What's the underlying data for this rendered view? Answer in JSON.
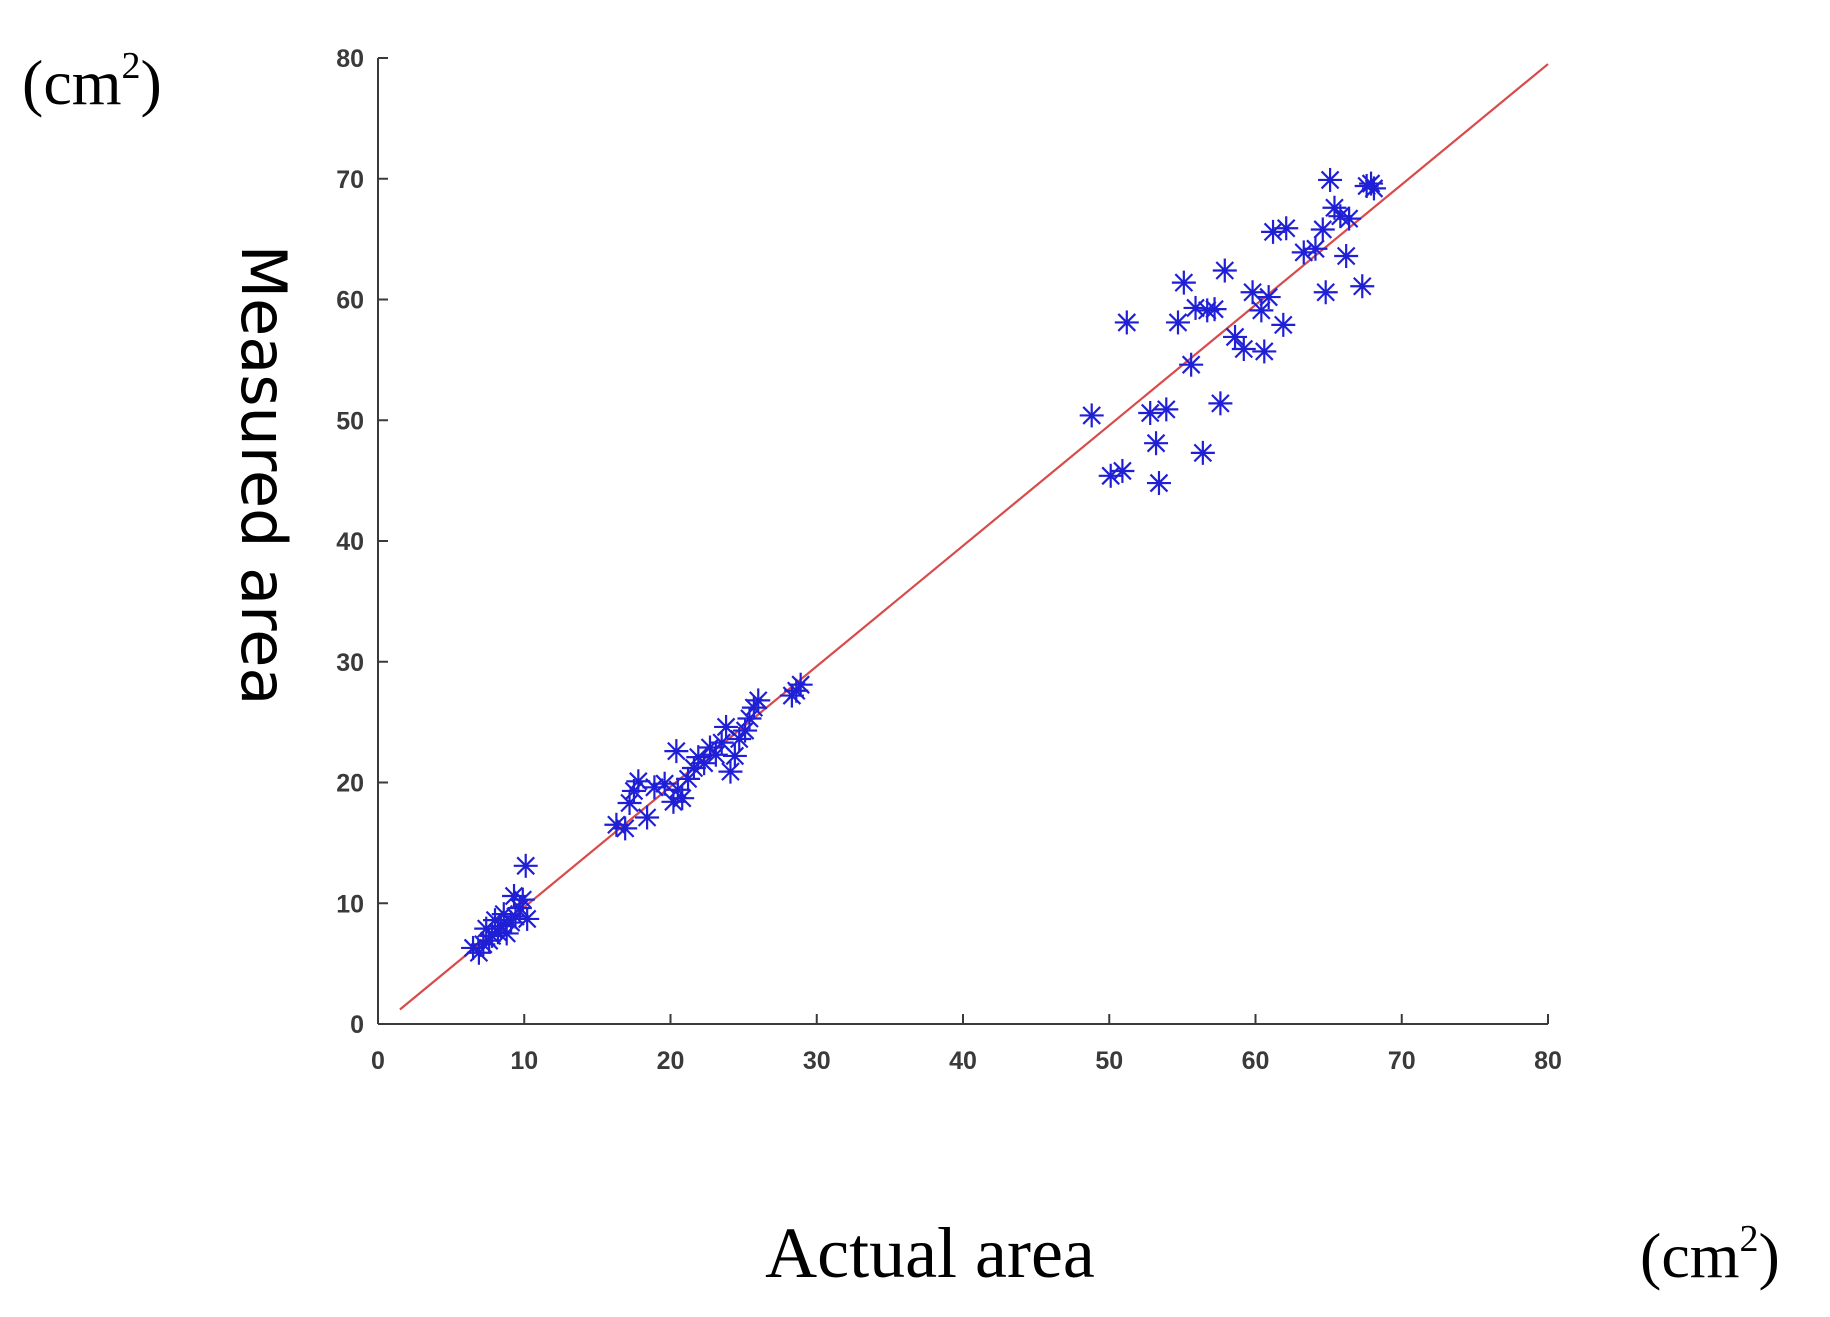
{
  "chart_data": {
    "type": "scatter",
    "xlabel": "Actual area",
    "ylabel": "Measured area",
    "x_unit": "(cm",
    "y_unit": "(cm",
    "unit_sup": "2",
    "unit_close": ")",
    "xlim": [
      0,
      80
    ],
    "ylim": [
      0,
      80
    ],
    "xticks": [
      "0",
      "10",
      "20",
      "30",
      "40",
      "50",
      "60",
      "70",
      "80"
    ],
    "yticks": [
      "0",
      "10",
      "20",
      "30",
      "40",
      "50",
      "60",
      "70",
      "80"
    ],
    "grid": false,
    "legend": "none",
    "marker_color": "#1f1fd6",
    "fit_line_color": "#d94a4a",
    "fit_line": {
      "x": [
        1.5,
        80
      ],
      "y": [
        1.2,
        79.5
      ]
    },
    "points": [
      [
        6.5,
        6.3
      ],
      [
        6.9,
        5.9
      ],
      [
        7.2,
        6.6
      ],
      [
        7.6,
        6.9
      ],
      [
        7.8,
        7.3
      ],
      [
        8.2,
        7.6
      ],
      [
        8.4,
        8.1
      ],
      [
        8.8,
        7.5
      ],
      [
        9.1,
        8.4
      ],
      [
        9.4,
        8.9
      ],
      [
        8.6,
        9.1
      ],
      [
        9.7,
        9.6
      ],
      [
        9.9,
        10.3
      ],
      [
        10.2,
        8.7
      ],
      [
        10.1,
        13.1
      ],
      [
        9.3,
        10.6
      ],
      [
        8.0,
        8.6
      ],
      [
        7.4,
        7.9
      ],
      [
        16.3,
        16.5
      ],
      [
        16.9,
        16.2
      ],
      [
        17.2,
        18.3
      ],
      [
        17.5,
        19.3
      ],
      [
        17.8,
        20.1
      ],
      [
        18.4,
        17.1
      ],
      [
        18.9,
        19.6
      ],
      [
        19.6,
        19.9
      ],
      [
        20.2,
        18.4
      ],
      [
        20.5,
        19.4
      ],
      [
        20.8,
        18.7
      ],
      [
        20.4,
        22.6
      ],
      [
        21.2,
        20.3
      ],
      [
        21.6,
        21.2
      ],
      [
        21.9,
        22.1
      ],
      [
        22.3,
        21.6
      ],
      [
        22.7,
        22.9
      ],
      [
        23.1,
        22.3
      ],
      [
        23.5,
        23.3
      ],
      [
        23.8,
        24.6
      ],
      [
        24.1,
        20.9
      ],
      [
        24.4,
        22.2
      ],
      [
        24.7,
        23.6
      ],
      [
        25.1,
        24.3
      ],
      [
        25.4,
        25.3
      ],
      [
        25.7,
        26.2
      ],
      [
        26.0,
        26.8
      ],
      [
        28.3,
        27.2
      ],
      [
        28.9,
        28.1
      ],
      [
        28.6,
        27.6
      ],
      [
        48.8,
        50.4
      ],
      [
        50.1,
        45.4
      ],
      [
        50.9,
        45.8
      ],
      [
        51.2,
        58.1
      ],
      [
        52.8,
        50.6
      ],
      [
        53.2,
        48.1
      ],
      [
        53.4,
        44.8
      ],
      [
        53.9,
        50.9
      ],
      [
        54.7,
        58.1
      ],
      [
        55.1,
        61.4
      ],
      [
        55.6,
        54.6
      ],
      [
        55.9,
        59.3
      ],
      [
        56.4,
        47.3
      ],
      [
        56.7,
        59.1
      ],
      [
        57.2,
        59.2
      ],
      [
        57.6,
        51.4
      ],
      [
        57.9,
        62.4
      ],
      [
        58.6,
        56.9
      ],
      [
        59.2,
        55.9
      ],
      [
        59.8,
        60.6
      ],
      [
        60.4,
        59.1
      ],
      [
        60.6,
        55.7
      ],
      [
        60.9,
        60.2
      ],
      [
        61.2,
        65.6
      ],
      [
        62.1,
        65.9
      ],
      [
        61.9,
        57.9
      ],
      [
        63.3,
        63.9
      ],
      [
        64.1,
        64.2
      ],
      [
        64.6,
        65.8
      ],
      [
        64.8,
        60.6
      ],
      [
        65.1,
        69.9
      ],
      [
        65.4,
        67.6
      ],
      [
        65.8,
        66.9
      ],
      [
        66.2,
        63.6
      ],
      [
        66.4,
        66.7
      ],
      [
        67.3,
        61.1
      ],
      [
        67.6,
        69.4
      ],
      [
        68.1,
        69.2
      ],
      [
        67.9,
        69.6
      ]
    ]
  }
}
